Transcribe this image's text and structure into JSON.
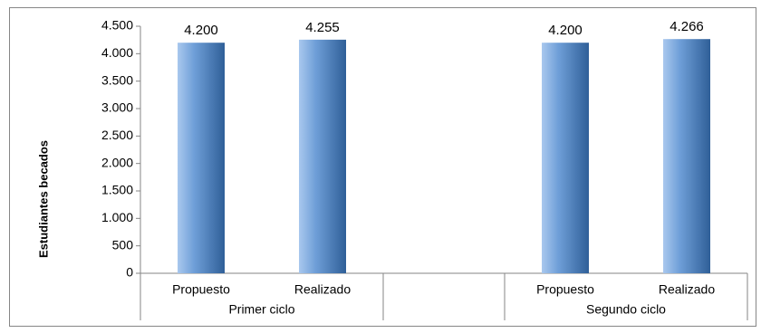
{
  "chart_data": {
    "type": "bar",
    "y_label": "Estudiantes becados",
    "groups": [
      {
        "name": "Primer ciclo",
        "categories": [
          "Propuesto",
          "Realizado"
        ],
        "values": [
          4200,
          4255
        ],
        "value_labels": [
          "4.200",
          "4.255"
        ]
      },
      {
        "name": "Segundo ciclo",
        "categories": [
          "Propuesto",
          "Realizado"
        ],
        "values": [
          4200,
          4266
        ],
        "value_labels": [
          "4.200",
          "4.266"
        ]
      }
    ],
    "color": "#4f81bd",
    "ylim": [
      0,
      4500
    ],
    "yticks": [
      0,
      500,
      {
        "value": 1000,
        "label": "1.000"
      },
      {
        "value": 1500,
        "label": "1.500"
      },
      {
        "value": 2000,
        "label": "2.000"
      },
      {
        "value": 2500,
        "label": "2.500"
      },
      {
        "value": 3000,
        "label": "3.000"
      },
      {
        "value": 3500,
        "label": "3.500"
      },
      {
        "value": 4000,
        "label": "4.000"
      },
      {
        "value": 4500,
        "label": "4.500"
      }
    ],
    "grid": false
  }
}
